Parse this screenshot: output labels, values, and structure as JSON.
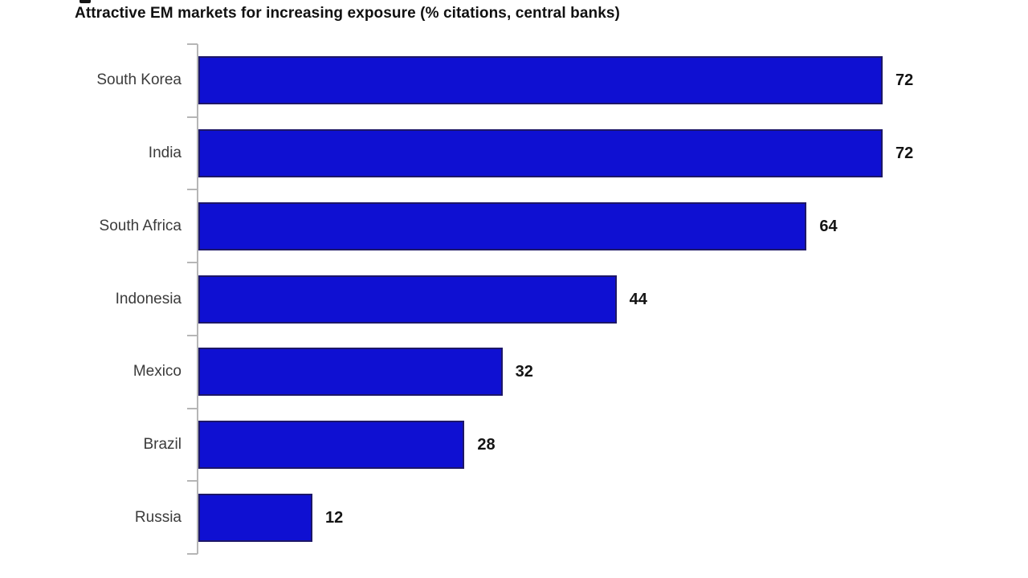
{
  "title": "Attractive EM markets for increasing exposure (% citations, central banks)",
  "colors": {
    "background": "#ffffff",
    "bar_fill": "#0f10d2",
    "bar_border": "#1d1768",
    "axis": "#b6b6b6",
    "category_text": "#3b3b3b",
    "value_text": "#141414",
    "title_text": "#111111"
  },
  "chart_data": {
    "type": "bar",
    "orientation": "horizontal",
    "title": "Attractive EM markets for increasing exposure (% citations, central banks)",
    "categories": [
      "South Korea",
      "India",
      "South Africa",
      "Indonesia",
      "Mexico",
      "Brazil",
      "Russia"
    ],
    "values": [
      72,
      72,
      64,
      44,
      32,
      28,
      12
    ],
    "xlabel": "",
    "ylabel": "",
    "xlim": [
      0,
      87
    ],
    "grid": false,
    "legend": false,
    "value_labels": true,
    "units": "% citations"
  }
}
